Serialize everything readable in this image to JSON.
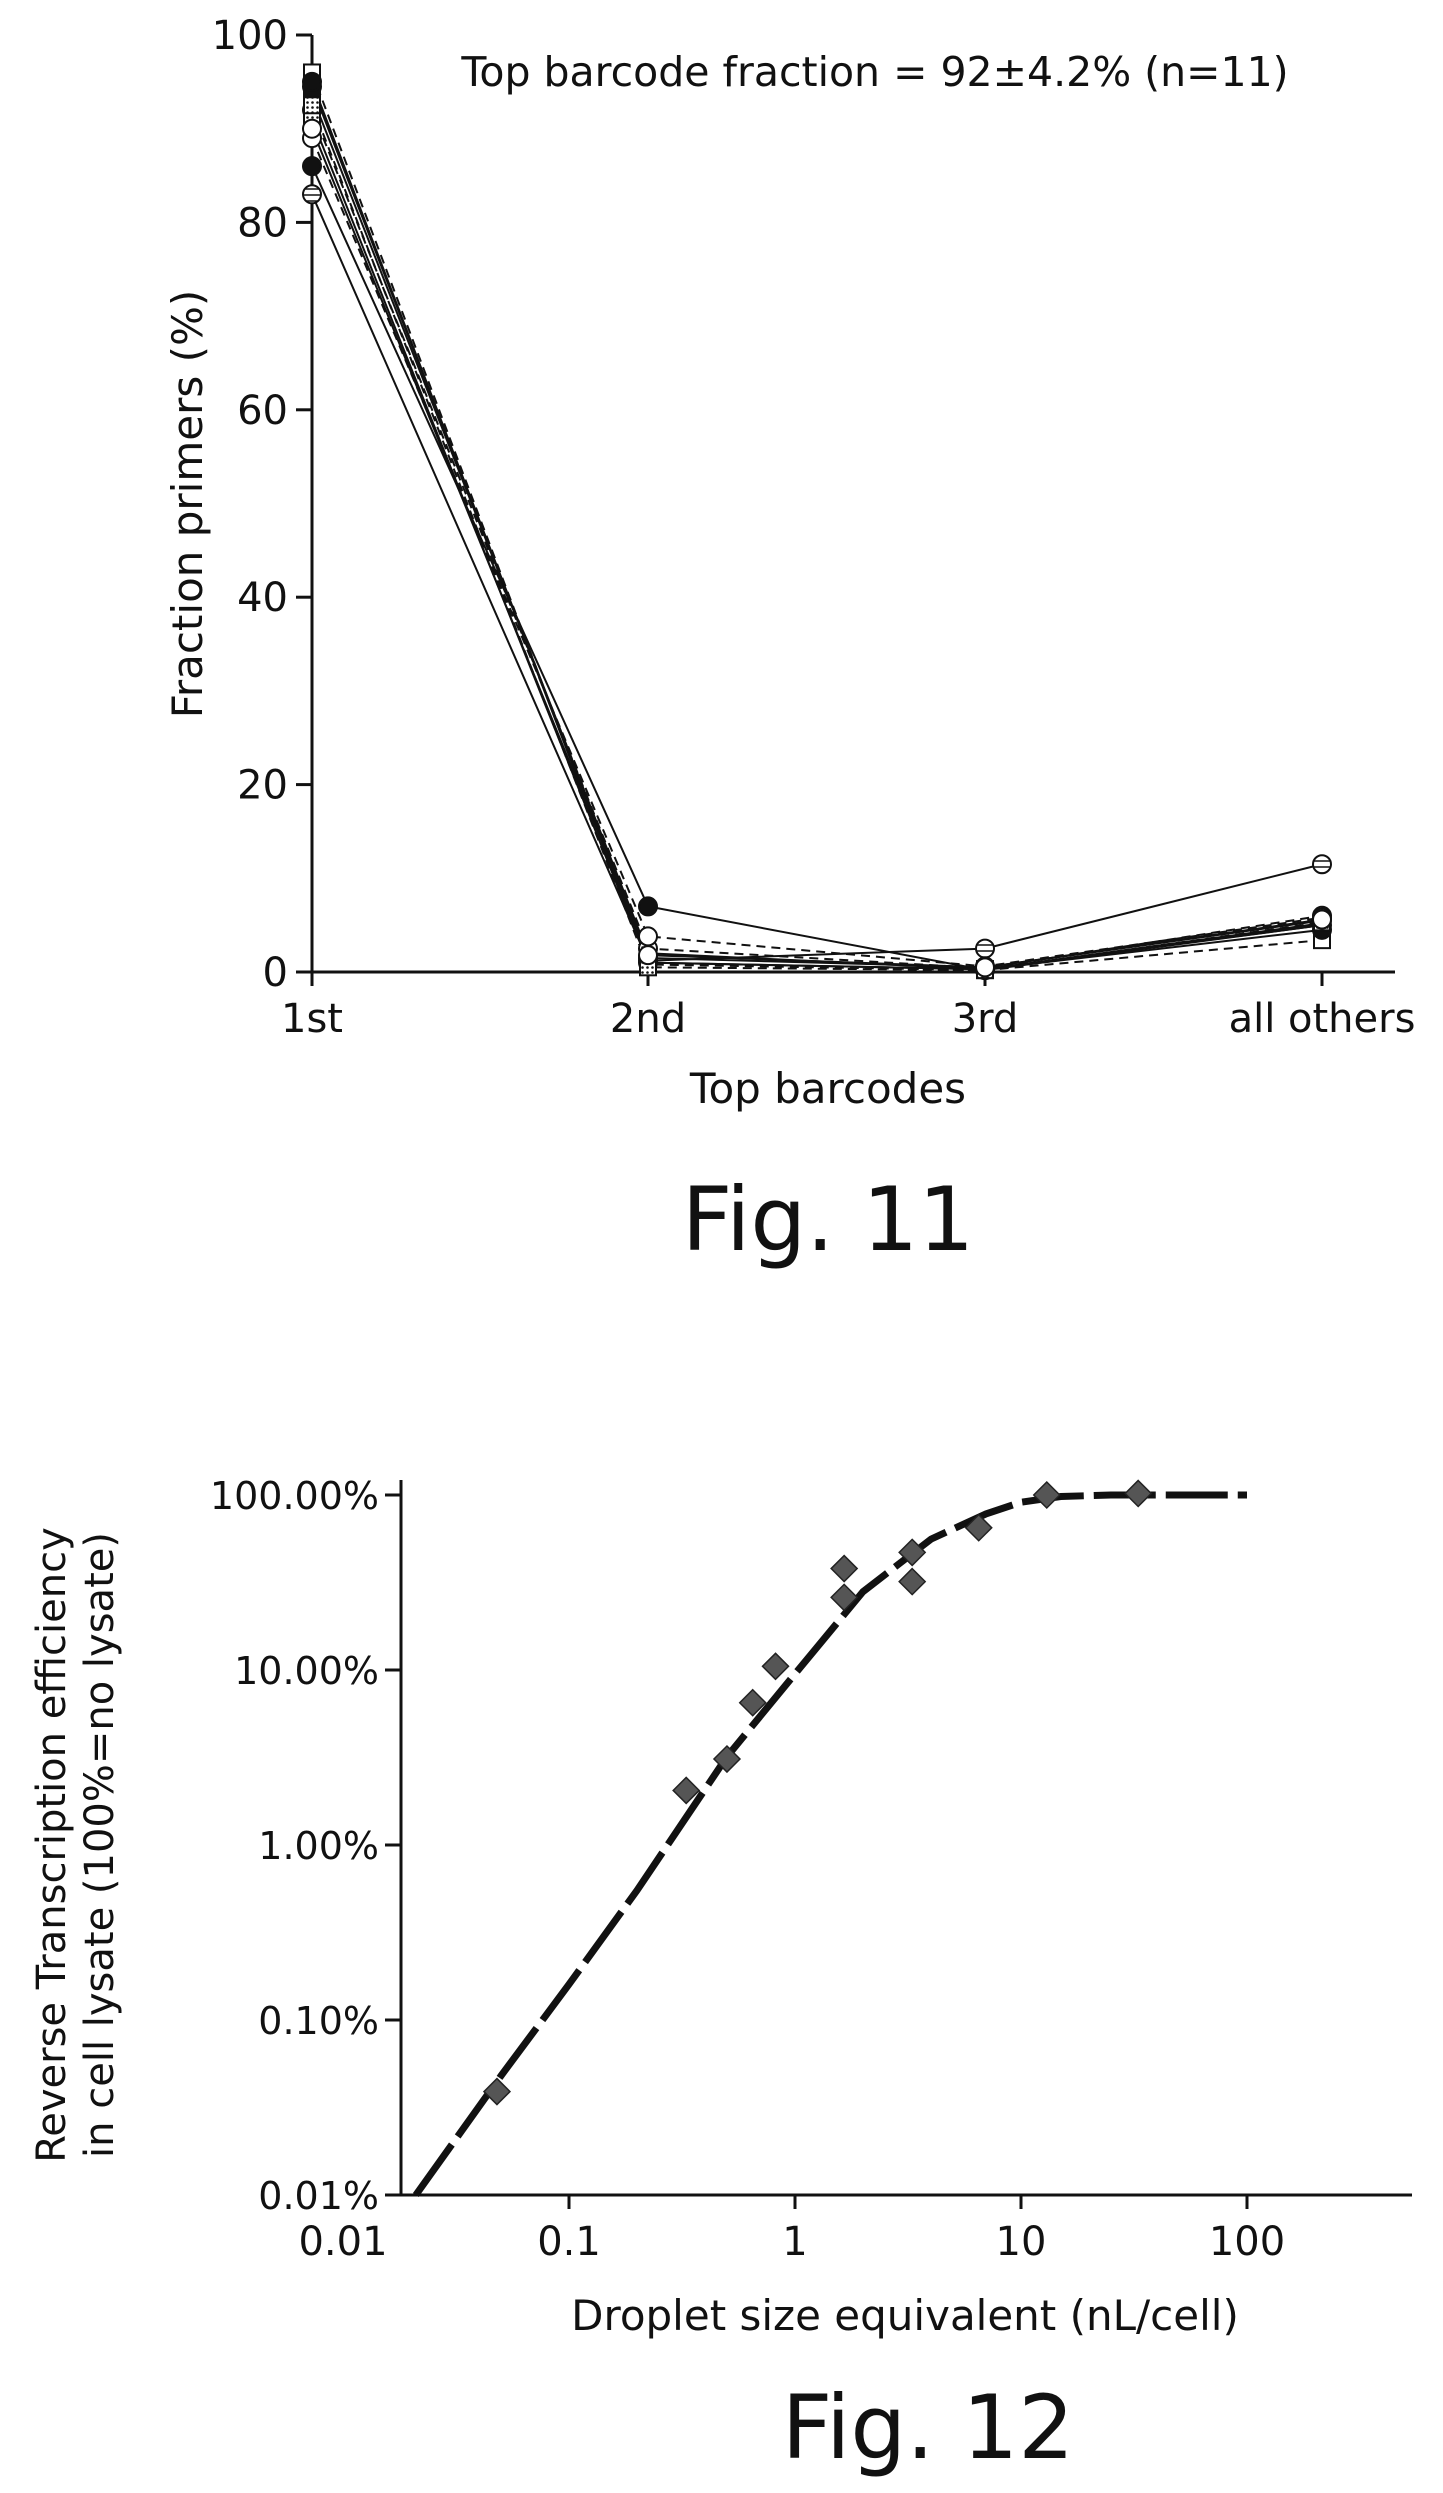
{
  "chart_data": [
    {
      "type": "line",
      "figure_label": "Fig. 11",
      "annotation": "Top barcode fraction = 92±4.2% (n=11)",
      "xlabel": "Top barcodes",
      "ylabel": "Fraction primers (%)",
      "categories": [
        "1st",
        "2nd",
        "3rd",
        "all others"
      ],
      "ylim": [
        0,
        100
      ],
      "yticks": [
        "0",
        "20",
        "40",
        "60",
        "80",
        "100"
      ],
      "grid": false,
      "series": [
        {
          "values": [
            96.0,
            0.8,
            0.2,
            3.4
          ],
          "marker": "open-square",
          "line": "dashed"
        },
        {
          "values": [
            94.5,
            1.5,
            0.5,
            5.5
          ],
          "marker": "filled-circle",
          "line": "solid"
        },
        {
          "values": [
            93.5,
            2.0,
            0.3,
            5.0
          ],
          "marker": "filled-square",
          "line": "solid"
        },
        {
          "values": [
            92.0,
            2.5,
            0.4,
            6.0
          ],
          "marker": "dotted-circle",
          "line": "dashed"
        },
        {
          "values": [
            91.0,
            1.0,
            0.3,
            5.2
          ],
          "marker": "dotted-square",
          "line": "solid"
        },
        {
          "values": [
            89.0,
            3.8,
            0.6,
            5.8
          ],
          "marker": "open-circle",
          "line": "dashed"
        },
        {
          "values": [
            86.0,
            7.0,
            0.2,
            5.0
          ],
          "marker": "filled-circle",
          "line": "solid"
        },
        {
          "values": [
            83.0,
            1.2,
            2.5,
            11.5
          ],
          "marker": "striped-circle",
          "line": "solid"
        },
        {
          "values": [
            95.0,
            1.0,
            0.3,
            4.5
          ],
          "marker": "filled-circle",
          "line": "solid"
        },
        {
          "values": [
            92.5,
            0.5,
            0.2,
            5.3
          ],
          "marker": "dotted-square",
          "line": "dashed"
        },
        {
          "values": [
            90.0,
            1.8,
            0.5,
            5.6
          ],
          "marker": "open-circle",
          "line": "solid"
        }
      ]
    },
    {
      "type": "scatter",
      "figure_label": "Fig. 12",
      "xlabel": "Droplet size equivalent (nL/cell)",
      "ylabel_line1": "Reverse Transcription efficiency",
      "ylabel_line2": "in cell lysate (100%=no lysate)",
      "xscale": "log",
      "yscale": "log",
      "xlim": [
        0.01,
        400
      ],
      "ylim": [
        0.01,
        100
      ],
      "xticks": [
        {
          "value": 0.01,
          "label": "0.01"
        },
        {
          "value": 0.1,
          "label": "0.1"
        },
        {
          "value": 1,
          "label": "1"
        },
        {
          "value": 10,
          "label": "10"
        },
        {
          "value": 100,
          "label": "100"
        }
      ],
      "yticks": [
        {
          "value": 0.01,
          "label": "0.01%"
        },
        {
          "value": 0.1,
          "label": "0.10%"
        },
        {
          "value": 1,
          "label": "1.00%"
        },
        {
          "value": 10,
          "label": "10.00%"
        },
        {
          "value": 100,
          "label": "100.00%"
        }
      ],
      "points": [
        {
          "x": 0.048,
          "y": 0.039
        },
        {
          "x": 0.33,
          "y": 2.05
        },
        {
          "x": 0.5,
          "y": 3.1
        },
        {
          "x": 0.65,
          "y": 6.5
        },
        {
          "x": 0.82,
          "y": 10.5
        },
        {
          "x": 1.65,
          "y": 26
        },
        {
          "x": 1.65,
          "y": 38
        },
        {
          "x": 3.3,
          "y": 32
        },
        {
          "x": 3.3,
          "y": 47
        },
        {
          "x": 6.5,
          "y": 65
        },
        {
          "x": 13,
          "y": 100
        },
        {
          "x": 33,
          "y": 102
        }
      ],
      "fit_line": {
        "style": "dashed",
        "points": [
          {
            "x": 0.021,
            "y": 0.01
          },
          {
            "x": 0.05,
            "y": 0.048
          },
          {
            "x": 0.1,
            "y": 0.16
          },
          {
            "x": 0.2,
            "y": 0.55
          },
          {
            "x": 0.5,
            "y": 3.2
          },
          {
            "x": 1,
            "y": 9.5
          },
          {
            "x": 2,
            "y": 28
          },
          {
            "x": 4,
            "y": 56
          },
          {
            "x": 7,
            "y": 78
          },
          {
            "x": 10,
            "y": 91
          },
          {
            "x": 15,
            "y": 98
          },
          {
            "x": 25,
            "y": 100
          },
          {
            "x": 100,
            "y": 100
          }
        ]
      }
    }
  ]
}
